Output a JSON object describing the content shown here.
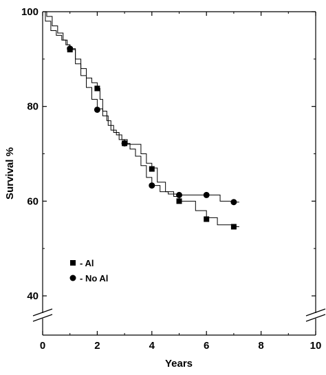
{
  "chart_data": {
    "type": "line",
    "xlabel": "Years",
    "ylabel": "Survival %",
    "xlim": [
      0,
      10
    ],
    "ylim": [
      40,
      100
    ],
    "y_axis_break": true,
    "x_ticks": [
      0,
      2,
      4,
      6,
      8,
      10
    ],
    "x_tick_labels": [
      "0",
      "2",
      "4",
      "6",
      "8",
      "10"
    ],
    "y_ticks": [
      40,
      60,
      80,
      100
    ],
    "y_tick_labels": [
      "40",
      "60",
      "80",
      "100"
    ],
    "grid": false,
    "legend_position": "bottom-left",
    "series": [
      {
        "name": "- Al",
        "marker": "square",
        "color": "#000000",
        "x": [
          0,
          0.1,
          0.3,
          0.5,
          0.7,
          0.85,
          1.0,
          1.2,
          1.4,
          1.6,
          1.8,
          2.0,
          2.1,
          2.2,
          2.35,
          2.5,
          2.7,
          2.9,
          3.1,
          3.3,
          3.6,
          3.8,
          4.0,
          4.2,
          4.5,
          4.8,
          5.0,
          5.3,
          5.6,
          6.0,
          6.4,
          7.0,
          7.2
        ],
        "y": [
          100,
          98,
          96,
          95,
          94,
          93,
          92,
          90,
          88,
          86,
          85,
          83.8,
          81.5,
          79,
          77,
          75,
          74,
          73,
          72,
          72,
          70,
          68,
          67,
          64,
          62,
          61,
          60,
          60,
          58,
          56.5,
          55,
          54.6,
          54.6
        ],
        "markers_x": [
          1,
          2,
          3,
          4,
          5,
          6,
          7
        ],
        "markers_y": [
          92,
          83.8,
          72.2,
          66.8,
          60,
          56.2,
          54.6
        ]
      },
      {
        "name": "- No Al",
        "marker": "circle",
        "color": "#000000",
        "x": [
          0,
          0.15,
          0.35,
          0.55,
          0.75,
          0.9,
          1.0,
          1.2,
          1.4,
          1.6,
          1.8,
          2.0,
          2.2,
          2.4,
          2.6,
          2.8,
          3.0,
          3.2,
          3.4,
          3.6,
          3.8,
          4.0,
          4.3,
          4.6,
          5.0,
          5.5,
          6.0,
          6.5,
          7.0,
          7.2
        ],
        "y": [
          100,
          99,
          97,
          95.5,
          94,
          93,
          92.2,
          89,
          86.5,
          84,
          81.5,
          79.5,
          78,
          76,
          74.5,
          73,
          72.2,
          71,
          69.5,
          67.5,
          65,
          63.3,
          62,
          61.5,
          61.3,
          61.3,
          61.3,
          60,
          59.8,
          59.8
        ],
        "markers_x": [
          1,
          2,
          3,
          4,
          5,
          6,
          7
        ],
        "markers_y": [
          92.2,
          79.3,
          72.2,
          63.3,
          61.3,
          61.3,
          59.8
        ]
      }
    ]
  }
}
